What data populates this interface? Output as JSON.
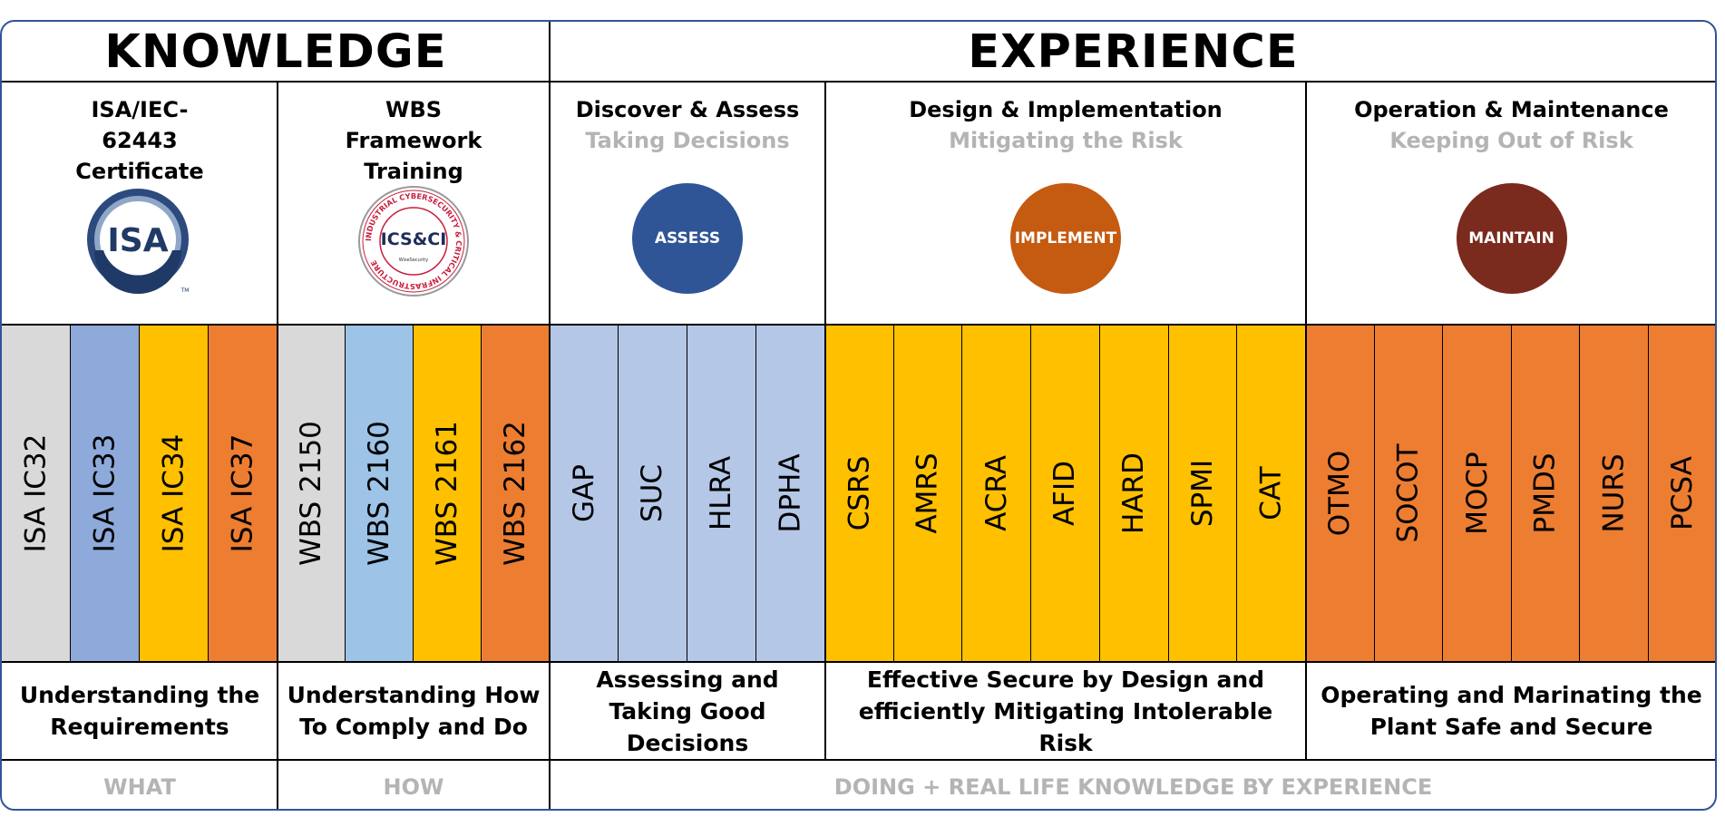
{
  "headers": {
    "knowledge": "KNOWLEDGE",
    "experience": "EXPERIENCE"
  },
  "sections": [
    {
      "title": "ISA/IEC-62443 Certificate",
      "subtitle": ""
    },
    {
      "title": "WBS Framework Training",
      "subtitle": ""
    },
    {
      "title": "Discover & Assess",
      "subtitle": "Taking Decisions",
      "badge": "ASSESS",
      "badge_color": "#2f5597"
    },
    {
      "title": "Design & Implementation",
      "subtitle": "Mitigating the Risk",
      "badge": "IMPLEMENT",
      "badge_color": "#c55a11"
    },
    {
      "title": "Operation & Maintenance",
      "subtitle": "Keeping Out of Risk",
      "badge": "MAINTAIN",
      "badge_color": "#7b2a1e"
    }
  ],
  "logos": {
    "isa": "ISA",
    "isa_tm": "TM",
    "icsci": "ICS&CI",
    "icsci_ring": "INDUSTRIAL CYBERSECURITY & CRITICAL INFRASTRUCTURE",
    "icsci_small": "WiseSecurity"
  },
  "columns": [
    {
      "label": "ISA IC32",
      "color": "#d9d9d9"
    },
    {
      "label": "ISA IC33",
      "color": "#8eaadb"
    },
    {
      "label": "ISA IC34",
      "color": "#ffc000"
    },
    {
      "label": "ISA IC37",
      "color": "#ed7d31"
    },
    {
      "label": "WBS 2150",
      "color": "#d9d9d9"
    },
    {
      "label": "WBS 2160",
      "color": "#9dc3e6"
    },
    {
      "label": "WBS 2161",
      "color": "#ffc000"
    },
    {
      "label": "WBS 2162",
      "color": "#ed7d31"
    },
    {
      "label": "GAP",
      "color": "#b4c7e7"
    },
    {
      "label": "SUC",
      "color": "#b4c7e7"
    },
    {
      "label": "HLRA",
      "color": "#b4c7e7"
    },
    {
      "label": "DPHA",
      "color": "#b4c7e7"
    },
    {
      "label": "CSRS",
      "color": "#ffc000"
    },
    {
      "label": "AMRS",
      "color": "#ffc000"
    },
    {
      "label": "ACRA",
      "color": "#ffc000"
    },
    {
      "label": "AFID",
      "color": "#ffc000"
    },
    {
      "label": "HARD",
      "color": "#ffc000"
    },
    {
      "label": "SPMI",
      "color": "#ffc000"
    },
    {
      "label": "CAT",
      "color": "#ffc000"
    },
    {
      "label": "OTMO",
      "color": "#ed7d31"
    },
    {
      "label": "SOCOT",
      "color": "#ed7d31"
    },
    {
      "label": "MOCP",
      "color": "#ed7d31"
    },
    {
      "label": "PMDS",
      "color": "#ed7d31"
    },
    {
      "label": "NURS",
      "color": "#ed7d31"
    },
    {
      "label": "PCSA",
      "color": "#ed7d31"
    }
  ],
  "descriptions": [
    "Understanding the Requirements",
    "Understanding How To Comply and Do",
    "Assessing and Taking Good Decisions",
    "Effective Secure by Design and efficiently Mitigating Intolerable Risk",
    "Operating and Marinating the Plant Safe and Secure"
  ],
  "footer": {
    "what": "WHAT",
    "how": "HOW",
    "doing": "DOING  + REAL LIFE KNOWLEDGE BY EXPERIENCE"
  }
}
